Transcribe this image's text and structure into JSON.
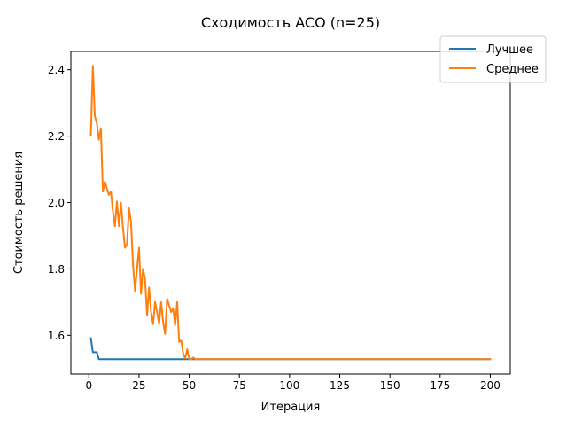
{
  "chart_data": {
    "type": "line",
    "title": "Сходимость ACO (n=25)",
    "xlabel": "Итерация",
    "ylabel": "Стоимость решения",
    "xlim": [
      -8.95,
      209.95
    ],
    "ylim": [
      1.4834,
      2.4553
    ],
    "xticks": [
      0,
      25,
      50,
      75,
      100,
      125,
      150,
      175,
      200
    ],
    "yticks": [
      1.6,
      1.8,
      2.0,
      2.2,
      2.4
    ],
    "xtick_labels": [
      "0",
      "25",
      "50",
      "75",
      "100",
      "125",
      "150",
      "175",
      "200"
    ],
    "ytick_labels": [
      "1.6",
      "1.8",
      "2.0",
      "2.2",
      "2.4"
    ],
    "grid": false,
    "legend_position": "top-right",
    "series": [
      {
        "name": "Лучшее",
        "color": "#1f77b4",
        "x": [
          1,
          2,
          3,
          4,
          5,
          200
        ],
        "y": [
          1.591,
          1.549,
          1.549,
          1.549,
          1.528,
          1.528
        ]
      },
      {
        "name": "Среднее",
        "color": "#ff7f0e",
        "x": [
          1,
          2,
          3,
          4,
          5,
          6,
          7,
          8,
          9,
          10,
          11,
          12,
          13,
          14,
          15,
          16,
          17,
          18,
          19,
          20,
          21,
          22,
          23,
          24,
          25,
          26,
          27,
          28,
          29,
          30,
          31,
          32,
          33,
          34,
          35,
          36,
          37,
          38,
          39,
          40,
          41,
          42,
          43,
          44,
          45,
          46,
          47,
          48,
          49,
          50,
          51,
          52,
          53,
          200
        ],
        "y": [
          2.203,
          2.412,
          2.259,
          2.239,
          2.189,
          2.224,
          2.033,
          2.063,
          2.043,
          2.023,
          2.033,
          1.973,
          1.929,
          2.003,
          1.929,
          1.999,
          1.924,
          1.864,
          1.874,
          1.983,
          1.943,
          1.814,
          1.734,
          1.8,
          1.864,
          1.725,
          1.8,
          1.77,
          1.66,
          1.744,
          1.67,
          1.634,
          1.7,
          1.67,
          1.634,
          1.7,
          1.64,
          1.604,
          1.71,
          1.69,
          1.67,
          1.68,
          1.63,
          1.7,
          1.58,
          1.584,
          1.545,
          1.531,
          1.558,
          1.528,
          1.528,
          1.533,
          1.528,
          1.528
        ]
      }
    ]
  }
}
